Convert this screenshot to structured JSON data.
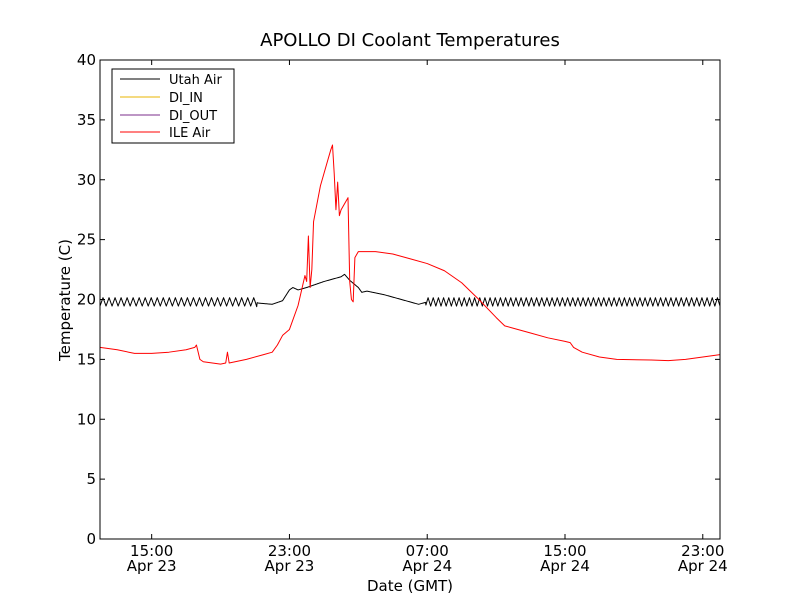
{
  "chart_data": {
    "type": "line",
    "title": "APOLLO DI Coolant Temperatures",
    "xlabel": "Date (GMT)",
    "ylabel": "Temperature (C)",
    "ylim": [
      0,
      40
    ],
    "yticks": [
      0,
      5,
      10,
      15,
      20,
      25,
      30,
      35,
      40
    ],
    "x_unit": "hours since 2025-04-23 00:00 GMT (year not shown)",
    "xlim": [
      12.0,
      48.0
    ],
    "xticks": [
      {
        "x": 15,
        "time": "15:00",
        "date": "Apr 23"
      },
      {
        "x": 23,
        "time": "23:00",
        "date": "Apr 23"
      },
      {
        "x": 31,
        "time": "07:00",
        "date": "Apr 24"
      },
      {
        "x": 39,
        "time": "15:00",
        "date": "Apr 24"
      },
      {
        "x": 47,
        "time": "23:00",
        "date": "Apr 24"
      }
    ],
    "legend": {
      "position": "top-left"
    },
    "series": [
      {
        "name": "Utah Air",
        "color": "#000000",
        "oscillate": [
          {
            "from": 12.0,
            "to": 21.1,
            "amplitude": 0.35,
            "period": 0.35
          },
          {
            "from": 30.9,
            "to": 48.0,
            "amplitude": 0.35,
            "period": 0.3
          }
        ],
        "points": [
          [
            12.0,
            19.8
          ],
          [
            13.0,
            19.8
          ],
          [
            14.0,
            19.8
          ],
          [
            15.0,
            19.8
          ],
          [
            16.0,
            19.8
          ],
          [
            17.0,
            19.8
          ],
          [
            18.0,
            19.8
          ],
          [
            19.0,
            19.8
          ],
          [
            20.0,
            19.8
          ],
          [
            21.0,
            19.8
          ],
          [
            21.2,
            19.7
          ],
          [
            22.0,
            19.6
          ],
          [
            22.6,
            19.9
          ],
          [
            23.0,
            20.8
          ],
          [
            23.2,
            21.0
          ],
          [
            23.5,
            20.8
          ],
          [
            24.0,
            21.0
          ],
          [
            25.0,
            21.5
          ],
          [
            26.0,
            21.9
          ],
          [
            26.2,
            22.1
          ],
          [
            26.5,
            21.6
          ],
          [
            27.0,
            21.0
          ],
          [
            27.2,
            20.6
          ],
          [
            27.5,
            20.7
          ],
          [
            28.5,
            20.4
          ],
          [
            29.5,
            20.0
          ],
          [
            30.5,
            19.6
          ],
          [
            31.0,
            19.8
          ],
          [
            35.0,
            19.8
          ],
          [
            40.0,
            19.8
          ],
          [
            45.0,
            19.8
          ],
          [
            48.0,
            19.8
          ]
        ]
      },
      {
        "name": "DI_IN",
        "color": "#e8b400",
        "points": []
      },
      {
        "name": "DI_OUT",
        "color": "#7b2d8b",
        "points": []
      },
      {
        "name": "ILE Air",
        "color": "#ff0000",
        "points": [
          [
            12.0,
            16.0
          ],
          [
            13.0,
            15.8
          ],
          [
            14.0,
            15.5
          ],
          [
            15.0,
            15.5
          ],
          [
            16.0,
            15.6
          ],
          [
            17.0,
            15.8
          ],
          [
            17.5,
            16.0
          ],
          [
            17.6,
            16.2
          ],
          [
            17.8,
            15.0
          ],
          [
            18.0,
            14.8
          ],
          [
            19.0,
            14.6
          ],
          [
            19.3,
            14.7
          ],
          [
            19.4,
            15.6
          ],
          [
            19.5,
            14.7
          ],
          [
            20.5,
            15.0
          ],
          [
            21.5,
            15.4
          ],
          [
            22.0,
            15.6
          ],
          [
            22.3,
            16.2
          ],
          [
            22.6,
            17.0
          ],
          [
            23.0,
            17.5
          ],
          [
            23.5,
            19.5
          ],
          [
            23.9,
            22.0
          ],
          [
            24.0,
            21.5
          ],
          [
            24.1,
            25.3
          ],
          [
            24.2,
            21.0
          ],
          [
            24.3,
            22.5
          ],
          [
            24.4,
            26.5
          ],
          [
            24.6,
            28.0
          ],
          [
            24.8,
            29.5
          ],
          [
            25.0,
            30.5
          ],
          [
            25.2,
            31.5
          ],
          [
            25.4,
            32.5
          ],
          [
            25.5,
            32.9
          ],
          [
            25.6,
            30.5
          ],
          [
            25.7,
            27.5
          ],
          [
            25.8,
            29.8
          ],
          [
            25.9,
            27.0
          ],
          [
            26.0,
            27.5
          ],
          [
            26.2,
            28.0
          ],
          [
            26.4,
            28.5
          ],
          [
            26.5,
            21.5
          ],
          [
            26.6,
            20.0
          ],
          [
            26.7,
            19.8
          ],
          [
            26.8,
            23.5
          ],
          [
            27.0,
            24.0
          ],
          [
            28.0,
            24.0
          ],
          [
            29.0,
            23.8
          ],
          [
            30.0,
            23.4
          ],
          [
            31.0,
            23.0
          ],
          [
            32.0,
            22.4
          ],
          [
            33.0,
            21.4
          ],
          [
            34.0,
            20.0
          ],
          [
            35.0,
            18.5
          ],
          [
            35.5,
            17.8
          ],
          [
            36.0,
            17.6
          ],
          [
            37.0,
            17.2
          ],
          [
            38.0,
            16.8
          ],
          [
            39.0,
            16.5
          ],
          [
            39.3,
            16.4
          ],
          [
            39.5,
            16.0
          ],
          [
            40.0,
            15.6
          ],
          [
            41.0,
            15.2
          ],
          [
            42.0,
            15.0
          ],
          [
            44.0,
            14.95
          ],
          [
            45.0,
            14.9
          ],
          [
            46.0,
            15.0
          ],
          [
            47.0,
            15.2
          ],
          [
            48.0,
            15.4
          ]
        ]
      }
    ]
  }
}
